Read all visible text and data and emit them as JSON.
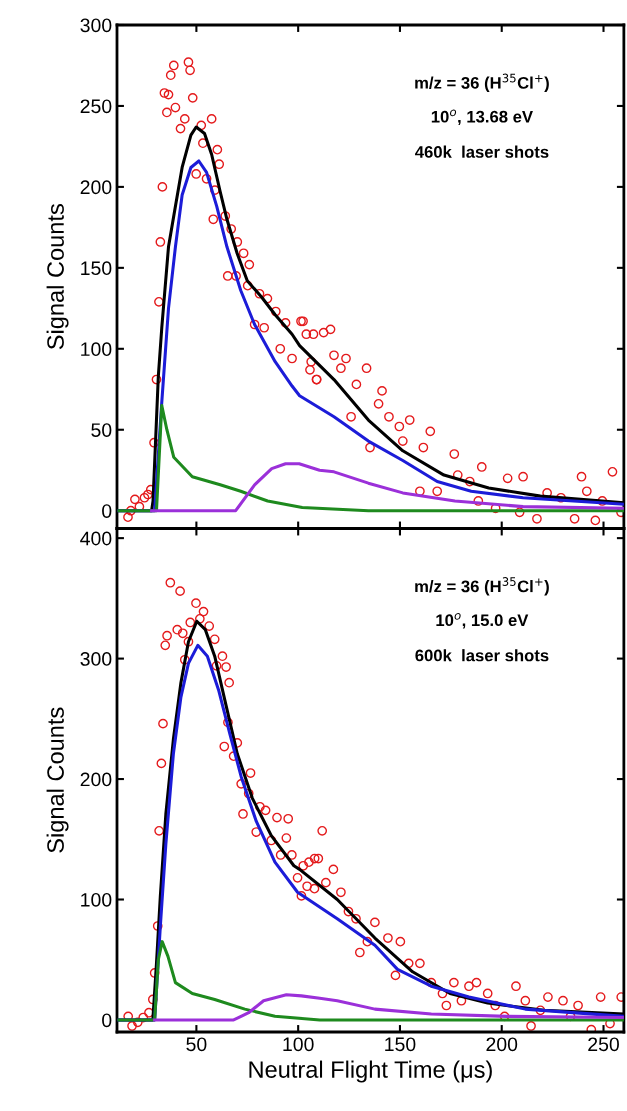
{
  "chart_data": [
    {
      "type": "line",
      "ylabel": "Signal Counts",
      "xlim": [
        11,
        260
      ],
      "xticks": [
        50,
        100,
        150,
        200,
        250
      ],
      "ylim": [
        -11,
        300
      ],
      "yticks": [
        0,
        50,
        100,
        150,
        200,
        250,
        300
      ],
      "tick_labels": "y",
      "annotations": [
        "m/z = 36 (H$^{35}$Cl$^{+}$)",
        "10$^{o}$, 13.68 eV",
        "460k  laser shots"
      ],
      "series": [
        {
          "type": "scatter",
          "marker": "circle",
          "color": "#e41a1c",
          "x": [
            16.4,
            17.8,
            19.8,
            22,
            24.5,
            26.2,
            27.6,
            29.2,
            30.4,
            31.6,
            32.3,
            33.3,
            34.3,
            35.5,
            36.3,
            37.4,
            38.9,
            39.7,
            42.2,
            44.3,
            46.1,
            46.9,
            48.2,
            49.9,
            52.4,
            53.2,
            55,
            57.5,
            58.3,
            59.1,
            60.3,
            61.2,
            64.2,
            65.4,
            67.1,
            69.5,
            70.1,
            73.2,
            76,
            75.2,
            78.6,
            81,
            84.9,
            83.3,
            89,
            91.2,
            93.8,
            97,
            101.4,
            104,
            106.4,
            109,
            102.4,
            107.5,
            112.5,
            115.9,
            105.8,
            109.1,
            117.6,
            123.5,
            121,
            128.6,
            133.6,
            126,
            135.3,
            141.2,
            139.5,
            144.6,
            149.7,
            154.8,
            151.4,
            161.5,
            164.9,
            159.8,
            168.3,
            176.7,
            178.4,
            184.3,
            190.2,
            188.5,
            197,
            202.9,
            210.5,
            208.8,
            217.3,
            222.3,
            229.1,
            235.8,
            239.2,
            241.8,
            246,
            249.4,
            254.4,
            258.6
          ],
          "values": [
            -4,
            0,
            7,
            2.5,
            8,
            10,
            13,
            42,
            81,
            129,
            166,
            200,
            258,
            246,
            257,
            269,
            275,
            249,
            236,
            242,
            277,
            272,
            255,
            208,
            238,
            227,
            205,
            242,
            180,
            198,
            223,
            214,
            182,
            145,
            174,
            145,
            166,
            159,
            152,
            139,
            115,
            134,
            131,
            113,
            123,
            100,
            116,
            94,
            117,
            109,
            92,
            81,
            117,
            109,
            110,
            112,
            87,
            81,
            96,
            94,
            88,
            78,
            88,
            58,
            39,
            74,
            66,
            58,
            52,
            56,
            43,
            39,
            49,
            12,
            12,
            35,
            22,
            18,
            27,
            6,
            1.5,
            20,
            21,
            -1,
            -5,
            11,
            8,
            -5,
            21,
            12,
            -6,
            6,
            24,
            -1
          ]
        },
        {
          "type": "line",
          "color": "#000000",
          "x": [
            12,
            28,
            28.7,
            31.3,
            33,
            36.3,
            39.7,
            43,
            47.3,
            49.9,
            54,
            57.5,
            61.7,
            65,
            70,
            75,
            82,
            88.7,
            97,
            100.7,
            117.6,
            134.5,
            151.4,
            171.6,
            193.6,
            219,
            259.5
          ],
          "values": [
            0,
            0,
            6,
            83,
            113,
            163,
            188,
            212,
            232,
            237,
            233,
            220,
            197,
            180,
            159,
            142,
            132,
            121,
            109,
            102,
            81,
            56,
            37,
            22,
            14,
            9,
            5
          ]
        },
        {
          "type": "line",
          "color": "#1c1cd8",
          "x": [
            12,
            29.5,
            33,
            36.3,
            39.7,
            43,
            47.3,
            51.2,
            55,
            60,
            65,
            71.8,
            78.6,
            88.7,
            97,
            100.7,
            117.6,
            134.5,
            151.4,
            168.3,
            185,
            210.5,
            259.5
          ],
          "values": [
            0,
            0,
            67,
            125,
            163,
            195,
            212,
            216,
            209,
            188,
            163,
            136,
            115,
            92,
            77,
            71,
            58,
            43,
            31,
            18,
            12,
            8,
            4
          ]
        },
        {
          "type": "line",
          "color": "#1e8a1e",
          "x": [
            12,
            30.4,
            33,
            35.5,
            38.9,
            48,
            61.7,
            71.8,
            85,
            102,
            134.5,
            259.5
          ],
          "values": [
            0,
            0,
            65,
            50,
            33,
            21,
            16,
            12,
            6,
            2,
            0,
            0
          ]
        },
        {
          "type": "line",
          "color": "#9b30d9",
          "x": [
            28,
            69.3,
            78.6,
            87,
            93.8,
            100.5,
            110.5,
            117.6,
            134.5,
            151.4,
            177,
            210.5,
            259.5
          ],
          "values": [
            0,
            0,
            16,
            26,
            29,
            29,
            25,
            24,
            17,
            11,
            6,
            2.5,
            1.5
          ]
        }
      ]
    },
    {
      "type": "line",
      "ylabel": "Signal Counts",
      "xlabel": "Neutral Flight Time (μs)",
      "xlim": [
        11,
        260
      ],
      "xticks": [
        50,
        100,
        150,
        200,
        250
      ],
      "ylim": [
        -10,
        408
      ],
      "yticks": [
        0,
        100,
        200,
        300,
        400
      ],
      "annotations": [
        "m/z = 36 (H$^{35}$Cl$^{+}$)",
        "10$^{o}$, 15.0 eV",
        "600k  laser shots"
      ],
      "series": [
        {
          "type": "scatter",
          "marker": "circle",
          "color": "#e41a1c",
          "x": [
            16.5,
            18.4,
            21.2,
            23.9,
            26.7,
            28.6,
            29.5,
            31,
            31.7,
            32.8,
            33.6,
            34.7,
            35.6,
            37.2,
            40.6,
            42,
            43.3,
            44.3,
            46.1,
            47,
            49.8,
            51.7,
            53.5,
            56.3,
            59,
            59.9,
            62.8,
            64.6,
            66.1,
            65.5,
            63.7,
            68.3,
            70.1,
            72,
            75.7,
            76.6,
            72.9,
            79.4,
            81.2,
            84,
            86.8,
            89.6,
            91.4,
            94.2,
            95.1,
            96.9,
            99.7,
            101.6,
            105.3,
            108,
            109.9,
            102.5,
            108.1,
            111.8,
            104.4,
            113.6,
            117.3,
            121,
            124.7,
            128.4,
            130.3,
            134,
            137.7,
            144.1,
            150.2,
            147.8,
            154.3,
            159.8,
            165.4,
            170.9,
            172.8,
            176.5,
            180.2,
            183.9,
            187.6,
            193.1,
            196.8,
            201.4,
            207,
            211.6,
            214.4,
            219,
            222.7,
            230.1,
            233.8,
            237.5,
            244,
            248.6,
            253.2,
            258.7
          ],
          "values": [
            3,
            -5,
            -2,
            2,
            6,
            17,
            39,
            78,
            157,
            213,
            246,
            311,
            319,
            363,
            324,
            356,
            321,
            299,
            314,
            330,
            346,
            333,
            339,
            327,
            316,
            294,
            302,
            293,
            280,
            247,
            227,
            219,
            230,
            196,
            188,
            205,
            171,
            156,
            177,
            174,
            149,
            168,
            137,
            151,
            167,
            137,
            118,
            103,
            131,
            109,
            134,
            128,
            134,
            157,
            111,
            114,
            125,
            106,
            90,
            84,
            56,
            65,
            81,
            68,
            65,
            37,
            47,
            47,
            31,
            22,
            12,
            31,
            16,
            28,
            31,
            22,
            12,
            3,
            28,
            16,
            -5,
            8,
            19,
            16,
            3,
            12,
            -8,
            19,
            -3,
            19
          ]
        },
        {
          "type": "line",
          "color": "#000000",
          "x": [
            12,
            28.6,
            30.4,
            32.3,
            35,
            38.7,
            42.4,
            46.1,
            50.2,
            54.4,
            59,
            64.6,
            70.1,
            77.5,
            86.8,
            97.9,
            100.7,
            119.2,
            137.7,
            156.2,
            174.6,
            193.1,
            220.8,
            259.7
          ],
          "values": [
            0,
            0,
            47,
            103,
            171,
            233,
            280,
            314,
            331,
            324,
            302,
            261,
            221,
            184,
            153,
            128,
            125,
            100,
            68,
            40,
            22,
            14,
            8,
            5
          ]
        },
        {
          "type": "line",
          "color": "#1c1cd8",
          "x": [
            12,
            29.5,
            32.3,
            35,
            38.7,
            42.4,
            46.1,
            50.7,
            55.4,
            60.9,
            66.5,
            72,
            79.4,
            88.6,
            99.7,
            119.2,
            137.7,
            148.8,
            165.4,
            183.9,
            211.6,
            259.7
          ],
          "values": [
            0,
            0,
            78,
            146,
            221,
            268,
            296,
            311,
            302,
            274,
            237,
            202,
            165,
            131,
            106,
            84,
            62,
            42,
            28,
            19,
            9,
            3
          ]
        },
        {
          "type": "line",
          "color": "#1e8a1e",
          "x": [
            12,
            29.5,
            31.3,
            33.2,
            36,
            39.7,
            48,
            59,
            73.8,
            88.6,
            110.6,
            259.7
          ],
          "values": [
            0,
            0,
            50,
            65,
            53,
            31,
            22,
            17,
            9,
            3,
            0,
            0
          ]
        },
        {
          "type": "line",
          "color": "#9b30d9",
          "x": [
            29.5,
            68.3,
            75.7,
            83,
            94.2,
            101.6,
            110.6,
            119.2,
            137.7,
            165.4,
            202.4,
            259.7
          ],
          "values": [
            0,
            0,
            6,
            16,
            21,
            20,
            18,
            16,
            9,
            5,
            3,
            2
          ]
        }
      ]
    }
  ]
}
